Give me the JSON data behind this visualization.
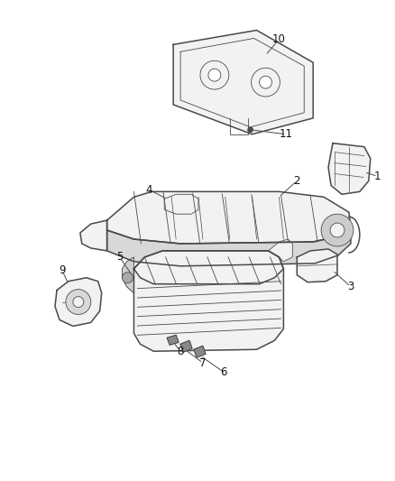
{
  "bg_color": "#ffffff",
  "line_color": "#4a4a4a",
  "fill_light": "#e8e8e8",
  "fill_lighter": "#f2f2f2",
  "fill_white": "#ffffff",
  "label_color": "#111111",
  "figsize": [
    4.38,
    5.33
  ],
  "dpi": 100,
  "label_fontsize": 8.5,
  "lw_main": 1.1,
  "lw_thin": 0.6,
  "lw_detail": 0.5
}
